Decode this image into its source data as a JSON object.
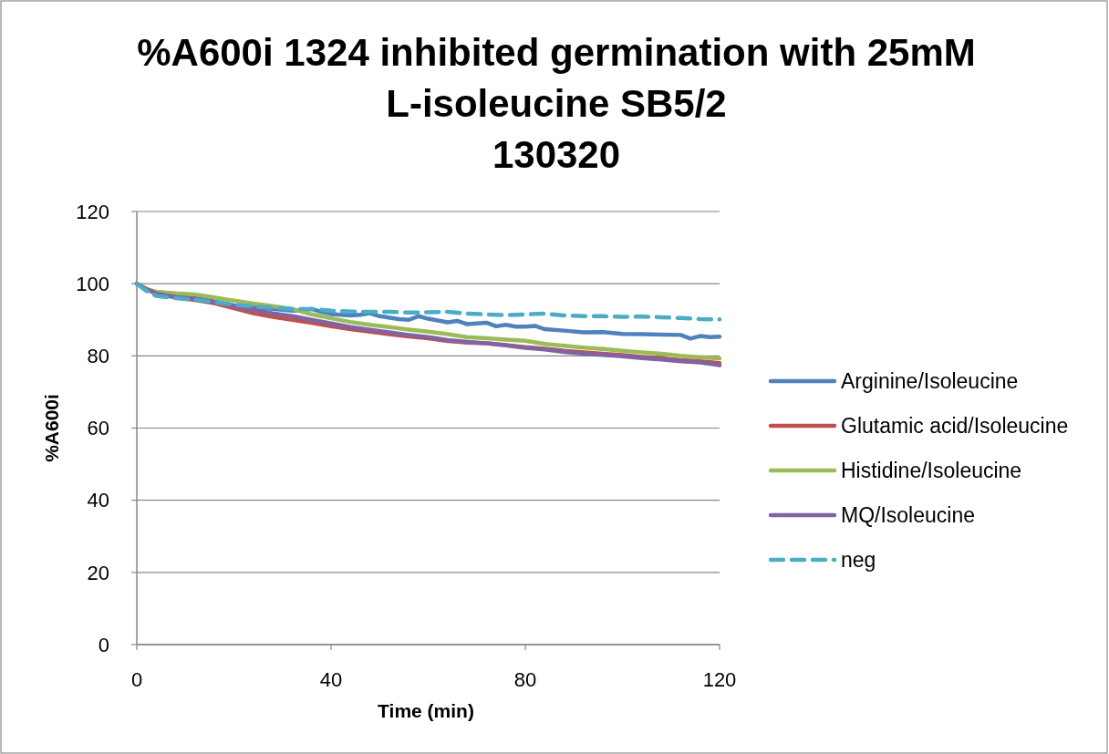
{
  "chart_data": {
    "type": "line",
    "title": "%A600i 1324 inhibited germination with 25mM\nL-isoleucine SB5/2\n130320",
    "xlabel": "Time (min)",
    "ylabel": "%A600i",
    "x": [
      0,
      2,
      4,
      8,
      12,
      16,
      20,
      24,
      28,
      32,
      36,
      40,
      44,
      48,
      52,
      56,
      60,
      64,
      68,
      72,
      76,
      80,
      84,
      88,
      92,
      96,
      100,
      104,
      108,
      112,
      116,
      120
    ],
    "xlim": [
      0,
      120
    ],
    "xticks": [
      0,
      40,
      80,
      120
    ],
    "ylim": [
      0,
      120
    ],
    "yticks": [
      0,
      20,
      40,
      60,
      80,
      100,
      120
    ],
    "grid": "y",
    "legend": "right",
    "series": [
      {
        "name": "Arginine/Isoleucine",
        "color": "#4f81bd",
        "x": [
          0,
          2,
          4,
          8,
          12,
          16,
          20,
          24,
          28,
          32,
          34,
          36,
          38,
          40,
          44,
          46,
          48,
          50,
          54,
          56,
          58,
          60,
          64,
          66,
          68,
          72,
          74,
          76,
          78,
          80,
          82,
          84,
          88,
          92,
          96,
          100,
          104,
          108,
          112,
          114,
          116,
          118,
          120
        ],
        "values": [
          100,
          98.5,
          97.5,
          96.5,
          96,
          95,
          94,
          93.5,
          93,
          92.5,
          92.5,
          93,
          92.2,
          91.6,
          91.2,
          91.4,
          91.8,
          91,
          90.2,
          90,
          91,
          90.3,
          89.3,
          89.7,
          88.8,
          89.2,
          88.2,
          88.6,
          88.1,
          88.1,
          88.3,
          87.4,
          87,
          86.5,
          86.6,
          86.1,
          86,
          85.9,
          85.8,
          84.8,
          85.5,
          85.2,
          85.3
        ]
      },
      {
        "name": "Glutamic acid/Isoleucine",
        "color": "#c0504d",
        "values": [
          100,
          98.5,
          97.3,
          96.2,
          95.5,
          94.6,
          93.2,
          91.8,
          90.8,
          90,
          89.2,
          88.2,
          87.4,
          86.7,
          86,
          85.4,
          84.9,
          84.1,
          83.7,
          83.5,
          83,
          82.4,
          82,
          81.4,
          81,
          80.6,
          80.2,
          79.7,
          79.3,
          78.8,
          78.5,
          78
        ]
      },
      {
        "name": "Histidine/Isoleucine",
        "color": "#9bbb59",
        "values": [
          100,
          98.5,
          97.8,
          97.3,
          97,
          96.2,
          95.3,
          94.5,
          93.8,
          93,
          91.5,
          90.4,
          89.4,
          88.6,
          88,
          87.3,
          86.7,
          86,
          85.2,
          84.9,
          84.5,
          84.2,
          83.3,
          82.8,
          82.3,
          81.9,
          81.4,
          81,
          80.6,
          80,
          79.6,
          79.3
        ]
      },
      {
        "name": "MQ/Isoleucine",
        "color": "#8064a2",
        "values": [
          100,
          98.5,
          97.3,
          96.3,
          95.8,
          95,
          93.8,
          92.8,
          91.8,
          91,
          90,
          89,
          88,
          87.2,
          86.5,
          85.8,
          85.2,
          84.4,
          83.9,
          83.5,
          82.9,
          82.2,
          81.8,
          81.1,
          80.6,
          80.3,
          79.9,
          79.4,
          79,
          78.5,
          78.2,
          77.4
        ]
      },
      {
        "name": "neg",
        "color": "#4bacc6",
        "line_style": "dashed",
        "values": [
          100,
          98,
          96.6,
          96,
          95.5,
          94.9,
          94.2,
          93.7,
          93.3,
          93,
          93,
          92.5,
          92.3,
          92.2,
          92.2,
          92,
          92.1,
          92.2,
          91.7,
          91.5,
          91.3,
          91.5,
          91.7,
          91.2,
          91,
          91,
          90.8,
          90.9,
          90.7,
          90.5,
          90.2,
          90.1
        ]
      }
    ]
  }
}
